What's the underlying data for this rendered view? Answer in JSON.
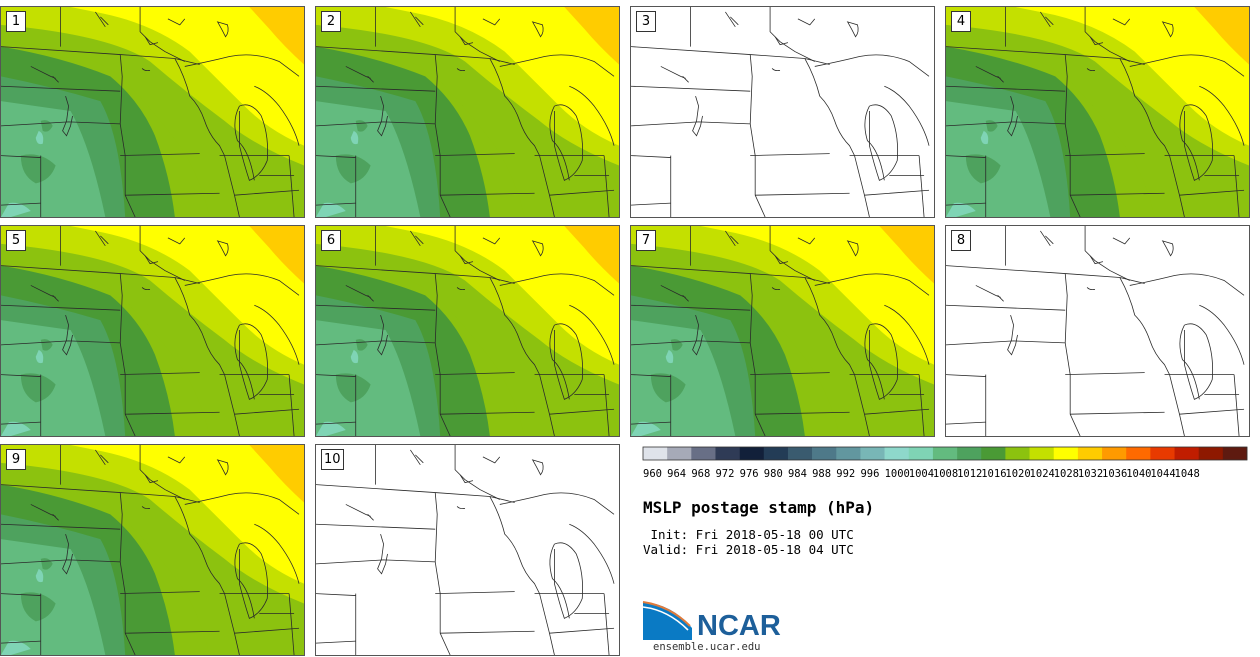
{
  "chart_data": {
    "type": "heatmap",
    "title": "MSLP postage stamp (hPa)",
    "init_label": " Init: Fri 2018-05-18 00 UTC",
    "valid_label": "Valid: Fri 2018-05-18 04 UTC",
    "units": "hPa",
    "colorbar": {
      "ticks": [
        960,
        964,
        968,
        972,
        976,
        980,
        984,
        988,
        992,
        996,
        1000,
        1004,
        1008,
        1012,
        1016,
        1020,
        1024,
        1028,
        1032,
        1036,
        1040,
        1044,
        1048
      ],
      "colors": [
        "#dfe3ea",
        "#a6aab8",
        "#686f86",
        "#2f3b56",
        "#12203a",
        "#233c56",
        "#3a5b6f",
        "#4e7989",
        "#62979f",
        "#78b6b6",
        "#8ed8cb",
        "#7fd4b5",
        "#63bb7f",
        "#4ea25e",
        "#4a9a35",
        "#8cc20f",
        "#c4e000",
        "#ffff00",
        "#ffcc00",
        "#ff9a00",
        "#ff6a00",
        "#e83a00",
        "#c01d00",
        "#8e1900",
        "#5e1a10"
      ]
    },
    "members": [
      {
        "id": "1",
        "label": "1",
        "has_data": true
      },
      {
        "id": "2",
        "label": "2",
        "has_data": true
      },
      {
        "id": "3",
        "label": "3",
        "has_data": false
      },
      {
        "id": "4",
        "label": "4",
        "has_data": true
      },
      {
        "id": "5",
        "label": "5",
        "has_data": true
      },
      {
        "id": "6",
        "label": "6",
        "has_data": true
      },
      {
        "id": "7",
        "label": "7",
        "has_data": true
      },
      {
        "id": "8",
        "label": "8",
        "has_data": false
      },
      {
        "id": "9",
        "label": "9",
        "has_data": true
      },
      {
        "id": "10",
        "label": "10",
        "has_data": false
      }
    ]
  },
  "logo": {
    "org": "NCAR",
    "url": "ensemble.ucar.edu"
  }
}
